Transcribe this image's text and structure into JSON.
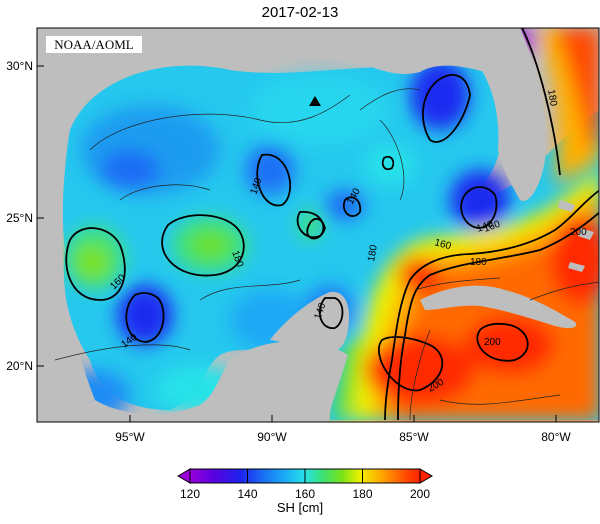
{
  "title": "2017-02-13",
  "credit": "NOAA/AOML",
  "lat_labels": [
    "30°N",
    "25°N",
    "20°N"
  ],
  "lon_labels": [
    "95°W",
    "90°W",
    "85°W",
    "80°W"
  ],
  "contour_labels": [
    "140",
    "140",
    "140",
    "140",
    "140",
    "160",
    "160",
    "160",
    "180",
    "180",
    "180",
    "180",
    "200",
    "200",
    "200"
  ],
  "colorbar": {
    "ticks": [
      "120",
      "140",
      "160",
      "180",
      "200"
    ],
    "label": "SH [cm]",
    "colors": [
      "#a000d8",
      "#6000e0",
      "#1c1cf0",
      "#1a6cf5",
      "#1aa8f5",
      "#27e2e8",
      "#3de27a",
      "#6ce01e",
      "#b8e810",
      "#f0f000",
      "#ffb000",
      "#ff6a00",
      "#ff2a00"
    ]
  },
  "colors": {
    "land": "#bebebe",
    "ocean_default": "#26c8ee",
    "frame": "#000000"
  },
  "marker": "triangle-marker"
}
